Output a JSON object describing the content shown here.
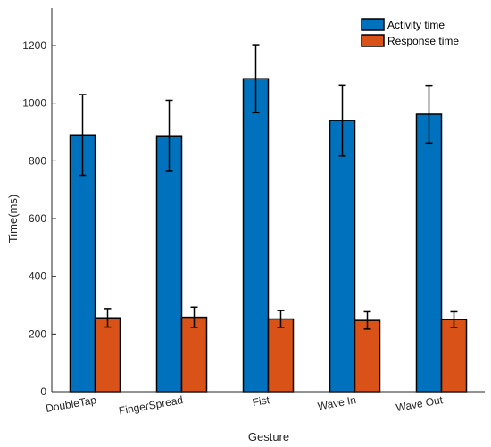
{
  "chart_data": {
    "type": "bar",
    "title": "",
    "xlabel": "Gesture",
    "ylabel": "Time(ms)",
    "ylim": [
      0,
      1330
    ],
    "yticks": [
      0,
      200,
      400,
      600,
      800,
      1000,
      1200
    ],
    "grid": false,
    "legend_position": "top-right",
    "categories": [
      "DoubleTap",
      "FingerSpread",
      "Fist",
      "Wave In",
      "Wave Out"
    ],
    "series": [
      {
        "name": "Activity time",
        "color": "#0072BD",
        "values": [
          890,
          887,
          1085,
          940,
          962
        ],
        "error": [
          140,
          123,
          118,
          123,
          100
        ]
      },
      {
        "name": "Response time",
        "color": "#D95319",
        "values": [
          256,
          258,
          252,
          247,
          250
        ],
        "error": [
          32,
          35,
          29,
          30,
          27
        ]
      }
    ]
  }
}
